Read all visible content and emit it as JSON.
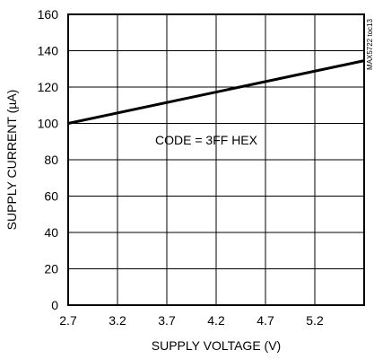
{
  "chart_data": {
    "type": "line",
    "xlabel": "SUPPLY VOLTAGE (V)",
    "ylabel": "SUPPLY CURRENT (µA)",
    "xlim": [
      2.7,
      5.7
    ],
    "ylim": [
      0,
      160
    ],
    "xticks": [
      2.7,
      3.2,
      3.7,
      4.2,
      4.7,
      5.2
    ],
    "xtick_labels": [
      "2.7",
      "3.2",
      "3.7",
      "4.2",
      "4.7",
      "5.2"
    ],
    "yticks": [
      0,
      20,
      40,
      60,
      80,
      100,
      120,
      140,
      160
    ],
    "ytick_labels": [
      "0",
      "20",
      "40",
      "60",
      "80",
      "100",
      "120",
      "140",
      "160"
    ],
    "grid": true,
    "series": [
      {
        "x": [
          2.7,
          5.7
        ],
        "y": [
          100,
          134.5
        ]
      }
    ],
    "annotation": "CODE = 3FF HEX",
    "watermark": "MAX5722 toc13"
  },
  "colors": {
    "line": "#000000",
    "grid": "#000000",
    "background": "#ffffff"
  }
}
